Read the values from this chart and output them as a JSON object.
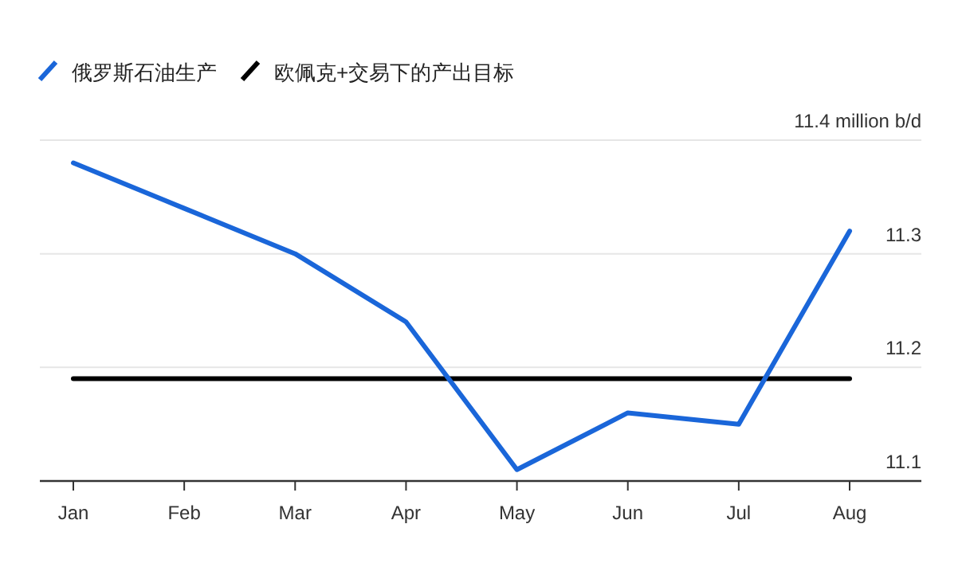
{
  "chart_data": {
    "type": "line",
    "categories": [
      "Jan",
      "Feb",
      "Mar",
      "Apr",
      "May",
      "Jun",
      "Jul",
      "Aug"
    ],
    "series": [
      {
        "name": "俄罗斯石油生产",
        "color": "#1a66d9",
        "values": [
          11.38,
          11.34,
          11.3,
          11.24,
          11.11,
          11.16,
          11.15,
          11.32
        ]
      },
      {
        "name": "欧佩克+交易下的产出目标",
        "color": "#000000",
        "values": [
          11.19,
          11.19,
          11.19,
          11.19,
          11.19,
          11.19,
          11.19,
          11.19
        ]
      }
    ],
    "ylim": [
      11.1,
      11.4
    ],
    "yticks": [
      11.1,
      11.2,
      11.3,
      {
        "value": 11.4,
        "label": "11.4 million b/d"
      }
    ],
    "grid": "y",
    "legend": "top left",
    "marker": "none",
    "line_style": "solid"
  }
}
